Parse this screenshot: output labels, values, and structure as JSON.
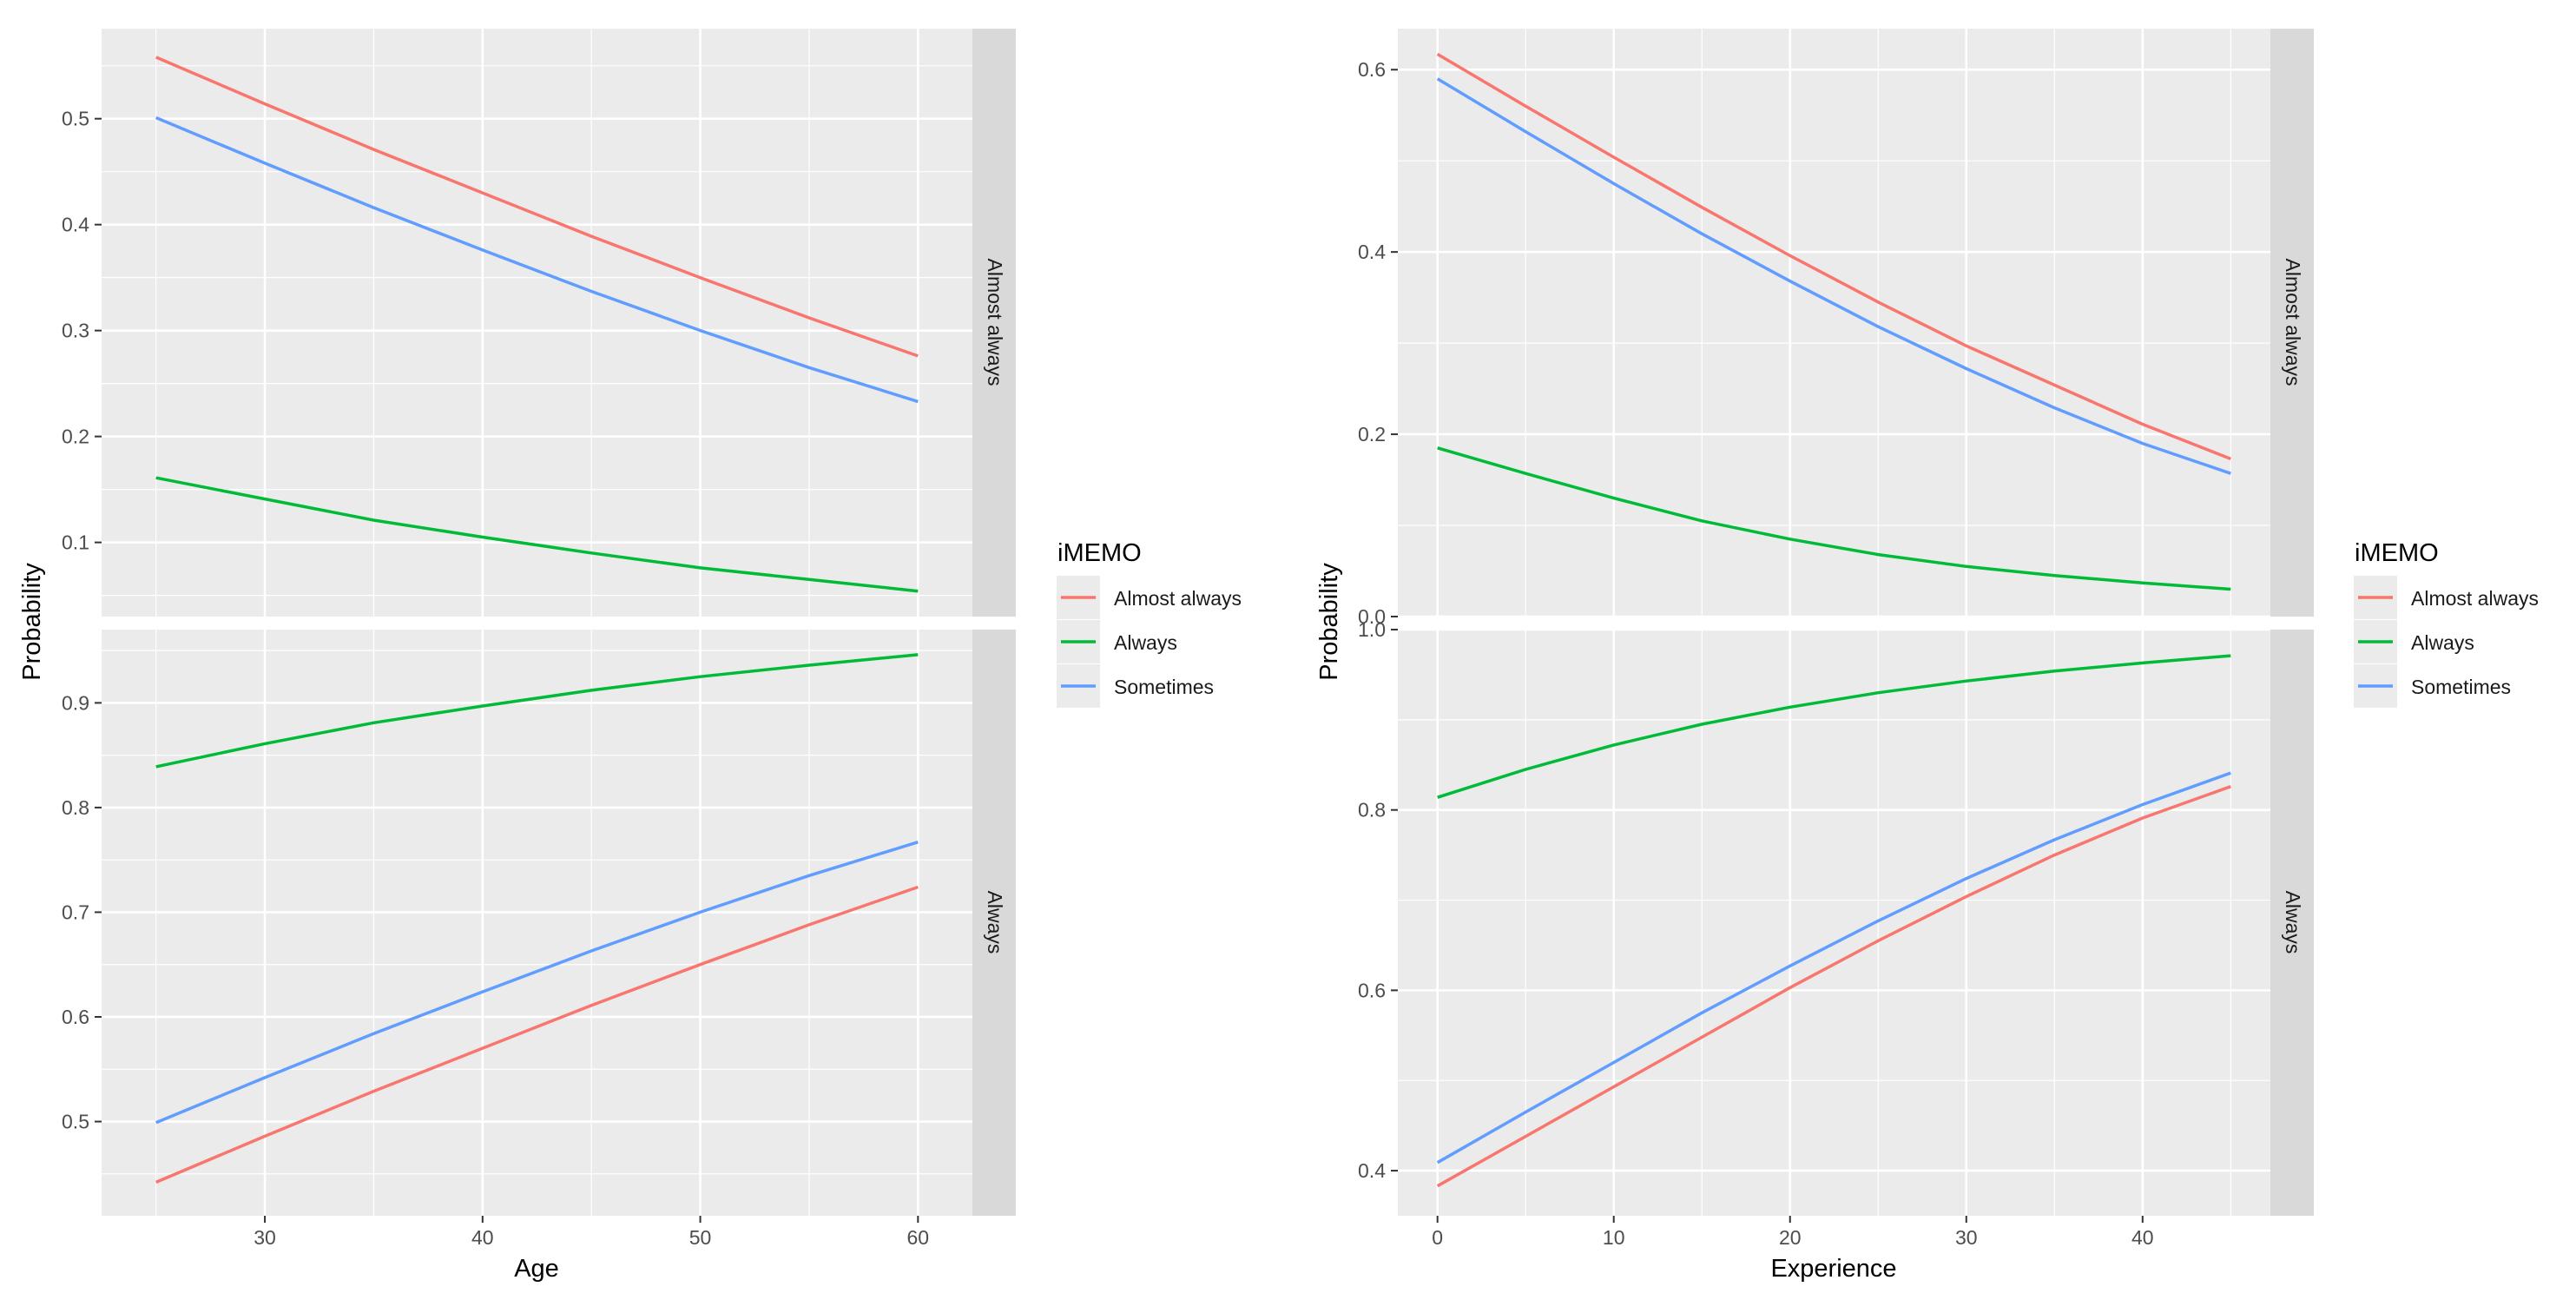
{
  "chart_data": [
    {
      "type": "line",
      "xlabel": "Age",
      "ylabel": "Probability",
      "legend": {
        "title": "iMEMO",
        "position": "right",
        "entries": [
          {
            "name": "Almost always",
            "color": "#F8766D"
          },
          {
            "name": "Always",
            "color": "#00BA38"
          },
          {
            "name": "Sometimes",
            "color": "#619CFF"
          }
        ]
      },
      "xlim": [
        22.5,
        62.5
      ],
      "x_ticks": [
        30,
        40,
        50,
        60
      ],
      "x": [
        25,
        30,
        35,
        40,
        45,
        50,
        55,
        60
      ],
      "grid": true,
      "facets": [
        {
          "strip": "Almost always",
          "ylim": [
            0.03,
            0.585
          ],
          "y_ticks": [
            0.1,
            0.2,
            0.3,
            0.4,
            0.5
          ],
          "series": [
            {
              "name": "Almost always",
              "values": [
                0.558,
                0.514,
                0.471,
                0.43,
                0.389,
                0.35,
                0.312,
                0.276
              ]
            },
            {
              "name": "Always",
              "values": [
                0.161,
                0.141,
                0.121,
                0.105,
                0.09,
                0.076,
                0.065,
                0.054
              ]
            },
            {
              "name": "Sometimes",
              "values": [
                0.501,
                0.458,
                0.416,
                0.376,
                0.337,
                0.3,
                0.265,
                0.233
              ]
            }
          ]
        },
        {
          "strip": "Always",
          "ylim": [
            0.41,
            0.97
          ],
          "y_ticks": [
            0.5,
            0.6,
            0.7,
            0.8,
            0.9
          ],
          "series": [
            {
              "name": "Almost always",
              "values": [
                0.442,
                0.486,
                0.529,
                0.57,
                0.611,
                0.65,
                0.688,
                0.724
              ]
            },
            {
              "name": "Always",
              "values": [
                0.839,
                0.861,
                0.881,
                0.897,
                0.912,
                0.925,
                0.936,
                0.946
              ]
            },
            {
              "name": "Sometimes",
              "values": [
                0.499,
                0.542,
                0.584,
                0.624,
                0.663,
                0.7,
                0.735,
                0.767
              ]
            }
          ]
        }
      ]
    },
    {
      "type": "line",
      "xlabel": "Experience",
      "ylabel": "Probability",
      "legend": {
        "title": "iMEMO",
        "position": "right",
        "entries": [
          {
            "name": "Almost always",
            "color": "#F8766D"
          },
          {
            "name": "Always",
            "color": "#00BA38"
          },
          {
            "name": "Sometimes",
            "color": "#619CFF"
          }
        ]
      },
      "xlim": [
        -2.25,
        47.25
      ],
      "x_ticks": [
        0,
        10,
        20,
        30,
        40
      ],
      "x": [
        0,
        5,
        10,
        15,
        20,
        25,
        30,
        35,
        40,
        45
      ],
      "grid": true,
      "facets": [
        {
          "strip": "Almost always",
          "ylim": [
            0.0,
            0.645
          ],
          "y_ticks": [
            0.0,
            0.2,
            0.4,
            0.6
          ],
          "series": [
            {
              "name": "Almost always",
              "values": [
                0.617,
                0.56,
                0.504,
                0.449,
                0.396,
                0.345,
                0.297,
                0.254,
                0.211,
                0.173
              ]
            },
            {
              "name": "Always",
              "values": [
                0.185,
                0.157,
                0.13,
                0.105,
                0.085,
                0.068,
                0.055,
                0.045,
                0.037,
                0.03
              ]
            },
            {
              "name": "Sometimes",
              "values": [
                0.59,
                0.532,
                0.475,
                0.42,
                0.368,
                0.318,
                0.272,
                0.229,
                0.19,
                0.157
              ]
            }
          ]
        },
        {
          "strip": "Always",
          "ylim": [
            0.35,
            1.0
          ],
          "y_ticks": [
            0.4,
            0.6,
            0.8,
            1.0
          ],
          "series": [
            {
              "name": "Almost always",
              "values": [
                0.383,
                0.438,
                0.493,
                0.548,
                0.603,
                0.655,
                0.704,
                0.75,
                0.791,
                0.826
              ]
            },
            {
              "name": "Always",
              "values": [
                0.814,
                0.845,
                0.872,
                0.895,
                0.914,
                0.93,
                0.943,
                0.954,
                0.963,
                0.971
              ]
            },
            {
              "name": "Sometimes",
              "values": [
                0.409,
                0.465,
                0.52,
                0.575,
                0.627,
                0.677,
                0.724,
                0.767,
                0.806,
                0.841
              ]
            }
          ]
        }
      ]
    }
  ]
}
